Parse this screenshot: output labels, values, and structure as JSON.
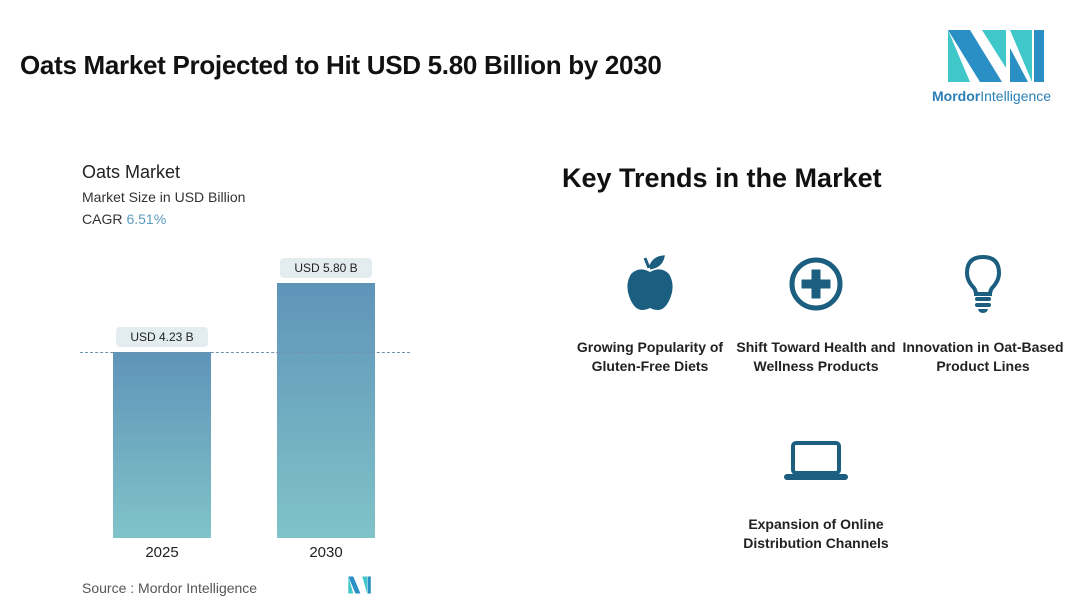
{
  "header": {
    "title": "Oats Market Projected to Hit USD 5.80 Billion by 2030",
    "logo_text_bold": "Mordor",
    "logo_text_light": "Intelligence"
  },
  "chart_data": {
    "type": "bar",
    "title": "Oats Market",
    "subtitle": "Market Size in USD Billion",
    "cagr_label": "CAGR",
    "cagr_value": "6.51%",
    "categories": [
      "2025",
      "2030"
    ],
    "values": [
      4.23,
      5.8
    ],
    "data_labels": [
      "USD 4.23 B",
      "USD 5.80 B"
    ],
    "reference_line_value": 4.23,
    "ylim": [
      0,
      5.8
    ],
    "grid": false
  },
  "source": "Source :  Mordor Intelligence",
  "trends": {
    "title": "Key Trends in the Market",
    "icon_color": "#1b5e80",
    "items": [
      {
        "icon": "apple-icon",
        "label": "Growing Popularity of Gluten-Free Diets"
      },
      {
        "icon": "medical-cross-icon",
        "label": "Shift Toward Health and Wellness Products"
      },
      {
        "icon": "lightbulb-icon",
        "label": "Innovation in Oat-Based Product Lines"
      },
      {
        "icon": "laptop-icon",
        "label": "Expansion of Online Distribution Channels"
      }
    ]
  }
}
